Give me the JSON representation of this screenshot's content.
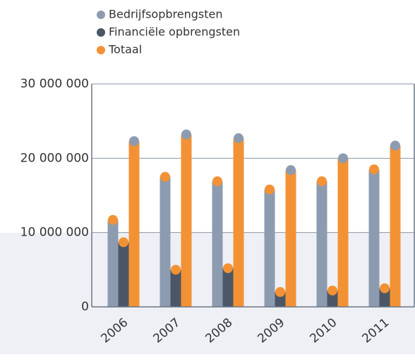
{
  "chart_data": {
    "type": "bar",
    "categories": [
      "2006",
      "2007",
      "2008",
      "2009",
      "2010",
      "2011"
    ],
    "series": [
      {
        "name": "Bedrijfsopbrengsten",
        "color": "#8c9bb0",
        "marker_color": "#f39234",
        "values": [
          11700000,
          17500000,
          16900000,
          15800000,
          16900000,
          18500000
        ]
      },
      {
        "name": "Financiële opbrengsten",
        "color": "#4b5766",
        "marker_color": "#f39234",
        "values": [
          8700000,
          5000000,
          5200000,
          2000000,
          2200000,
          2500000
        ]
      },
      {
        "name": "Totaal",
        "color": "#f39234",
        "marker_color": "#8c9bb0",
        "values": [
          22300000,
          23200000,
          22700000,
          18400000,
          20000000,
          21700000
        ]
      }
    ],
    "ylim": [
      0,
      30000000
    ],
    "yticks": [
      0,
      {
        "value": 10000000,
        "label": "10 000 000"
      },
      {
        "value": 20000000,
        "label": "20 000 000"
      },
      {
        "value": 30000000,
        "label": "30 000 000"
      }
    ],
    "grid": true
  }
}
